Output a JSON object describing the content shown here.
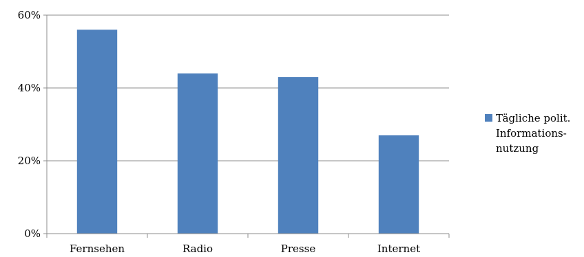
{
  "chart_data": {
    "type": "bar",
    "categories": [
      "Fernsehen",
      "Radio",
      "Presse",
      "Internet"
    ],
    "series": [
      {
        "name": "Tägliche polit. Informations-nutzung",
        "legend_lines": [
          "Tägliche polit.",
          "Informations-",
          "nutzung"
        ],
        "values": [
          56,
          44,
          43,
          27
        ],
        "color": "#4f81bd"
      }
    ],
    "y_ticks": [
      "0%",
      "20%",
      "40%",
      "60%"
    ],
    "ylim": [
      0,
      60
    ],
    "grid": "horizontal",
    "legend_position": "right",
    "colors": {
      "gridline": "#8c8c8c",
      "axis": "#8c8c8c"
    }
  }
}
